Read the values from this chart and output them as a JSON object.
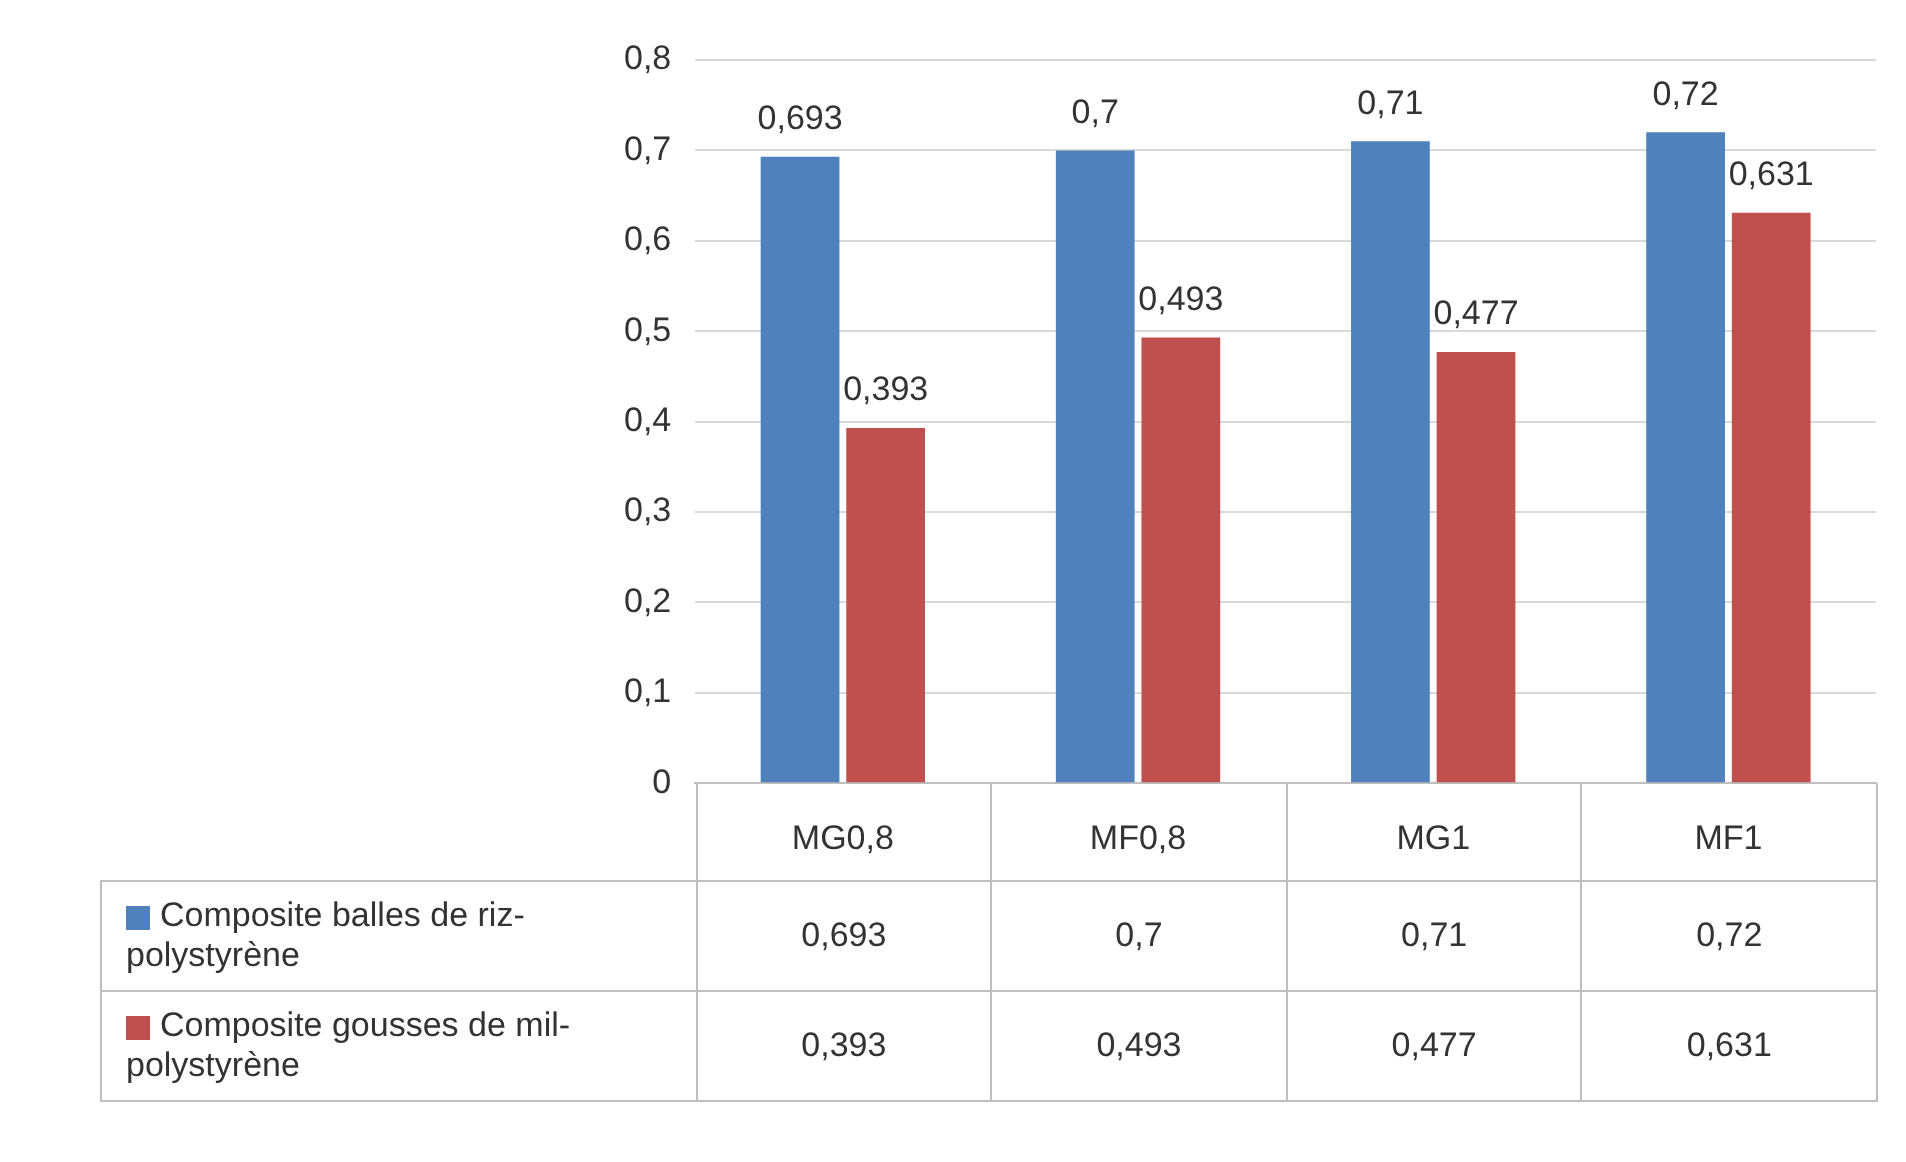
{
  "chart_data": {
    "type": "bar",
    "categories": [
      "MG0,8",
      "MF0,8",
      "MG1",
      "MF1"
    ],
    "series": [
      {
        "name": "Composite balles de riz-polystyrène",
        "color": "#4f81bd",
        "values": [
          0.693,
          0.7,
          0.71,
          0.72
        ],
        "value_labels": [
          "0,693",
          "0,7",
          "0,71",
          "0,72"
        ]
      },
      {
        "name": "Composite gousses de mil-polystyrène",
        "color": "#c0504d",
        "values": [
          0.393,
          0.493,
          0.477,
          0.631
        ],
        "value_labels": [
          "0,393",
          "0,493",
          "0,477",
          "0,631"
        ]
      }
    ],
    "ylim": [
      0,
      0.8
    ],
    "yticks": [
      {
        "value": 0,
        "label": "0"
      },
      {
        "value": 0.1,
        "label": "0,1"
      },
      {
        "value": 0.2,
        "label": "0,2"
      },
      {
        "value": 0.3,
        "label": "0,3"
      },
      {
        "value": 0.4,
        "label": "0,4"
      },
      {
        "value": 0.5,
        "label": "0,5"
      },
      {
        "value": 0.6,
        "label": "0,6"
      },
      {
        "value": 0.7,
        "label": "0,7"
      },
      {
        "value": 0.8,
        "label": "0,8"
      }
    ],
    "grid": "y",
    "legend": "bottom"
  }
}
